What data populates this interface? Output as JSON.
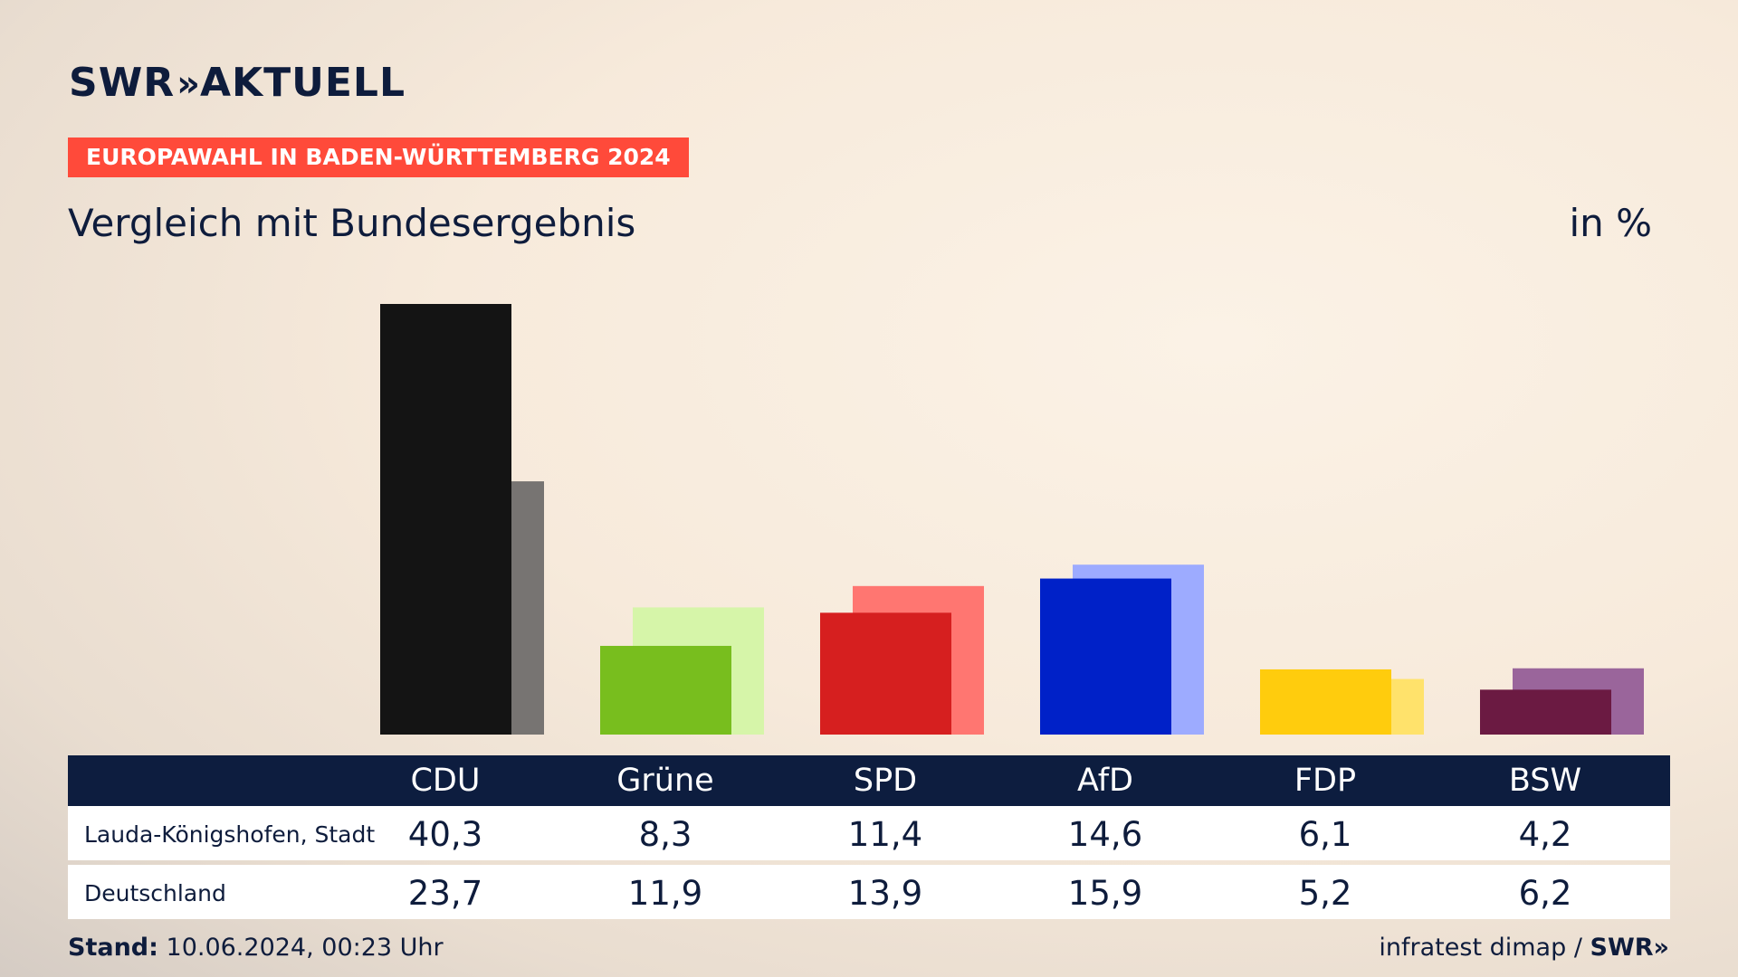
{
  "header": {
    "logo_text": "SWR",
    "logo_chevrons": "»",
    "logo_suffix": "AKTUELL",
    "badge": "EUROPAWAHL IN BADEN-WÜRTTEMBERG 2024",
    "subtitle": "Vergleich mit Bundesergebnis",
    "unit": "in %"
  },
  "chart_data": {
    "type": "bar",
    "categories": [
      "CDU",
      "Grüne",
      "SPD",
      "AfD",
      "FDP",
      "BSW"
    ],
    "series": [
      {
        "name": "Lauda-Königshofen, Stadt",
        "values": [
          40.3,
          8.3,
          11.4,
          14.6,
          6.1,
          4.2
        ]
      },
      {
        "name": "Deutschland",
        "values": [
          23.7,
          11.9,
          13.9,
          15.9,
          5.2,
          6.2
        ]
      }
    ],
    "display_values": [
      [
        "40,3",
        "8,3",
        "11,4",
        "14,6",
        "6,1",
        "4,2"
      ],
      [
        "23,7",
        "11,9",
        "13,9",
        "15,9",
        "5,2",
        "6,2"
      ]
    ],
    "colors": {
      "primary": [
        "#141414",
        "#78be1e",
        "#d61f1f",
        "#0021c8",
        "#ffcc0d",
        "#6b1a42"
      ],
      "secondary": [
        "#777472",
        "#d6f5a9",
        "#ff7671",
        "#9dabff",
        "#ffe26b",
        "#9a659b"
      ]
    },
    "ylim": [
      0,
      40.3
    ]
  },
  "footer": {
    "stand_label": "Stand:",
    "stand_value": "10.06.2024, 00:23 Uhr",
    "source": "infratest dimap /",
    "source_logo": "SWR»"
  }
}
